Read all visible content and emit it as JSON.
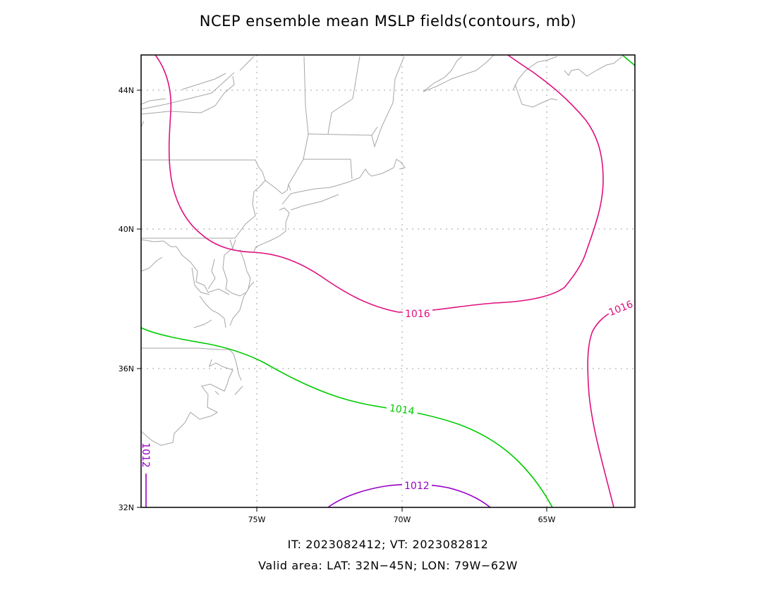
{
  "title": "NCEP ensemble mean MSLP fields(contours, mb)",
  "caption_line1": "IT: 2023082412; VT: 2023082812",
  "caption_line2": "Valid area: LAT: 32N−45N; LON: 79W−62W",
  "axes": {
    "lat_ticks": [
      "44N",
      "40N",
      "36N",
      "32N"
    ],
    "lon_ticks": [
      "75W",
      "70W",
      "65W"
    ]
  },
  "contours": {
    "c1016": {
      "value": 1016,
      "label": "1016",
      "label_east": "1016",
      "color": "#e0107f"
    },
    "c1014": {
      "value": 1014,
      "label": "1014",
      "color": "#00cc00"
    },
    "c1012": {
      "value": 1012,
      "label": "1012",
      "label_west": "1012",
      "color": "#9900c8"
    }
  },
  "colors": {
    "coastline": "#a6a6a6",
    "grid": "#a0a0a0",
    "frame": "#000000"
  }
}
